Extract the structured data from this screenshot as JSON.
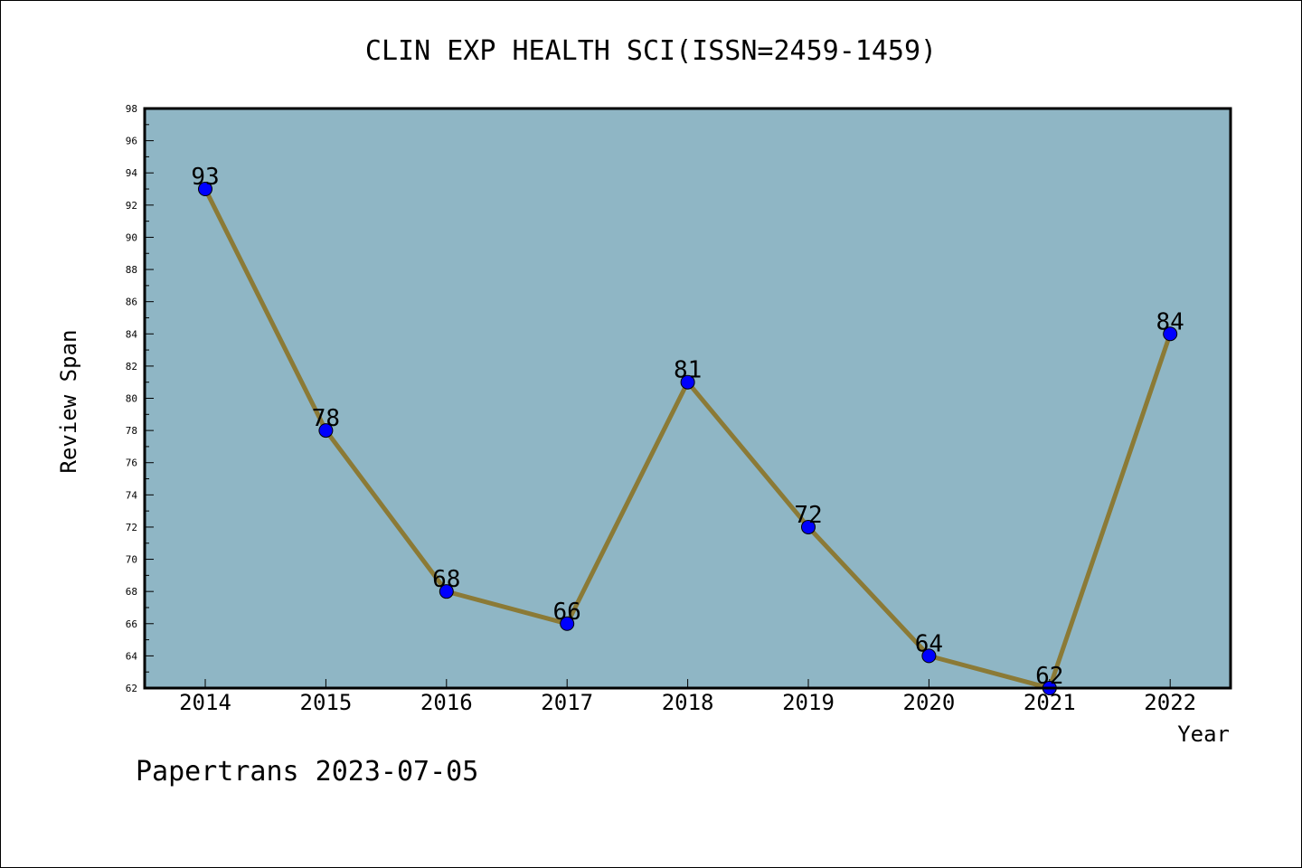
{
  "chart_data": {
    "type": "line",
    "title": "CLIN EXP HEALTH SCI(ISSN=2459-1459)",
    "xlabel": "Year",
    "ylabel": "Review Span",
    "categories": [
      "2014",
      "2015",
      "2016",
      "2017",
      "2018",
      "2019",
      "2020",
      "2021",
      "2022"
    ],
    "values": [
      93,
      78,
      68,
      66,
      81,
      72,
      64,
      62,
      84
    ],
    "ylim": [
      62,
      98
    ],
    "yticks": [
      62,
      64,
      66,
      68,
      70,
      72,
      74,
      76,
      78,
      80,
      82,
      84,
      86,
      88,
      90,
      92,
      94,
      96,
      98
    ],
    "data_labels": true,
    "grid": false,
    "colors": {
      "plot_background": "#8fb6c5",
      "line": "#8b7a36",
      "marker": "#0000ff",
      "frame": "#000000"
    }
  },
  "footer": {
    "credit": "Papertrans 2023-07-05"
  }
}
